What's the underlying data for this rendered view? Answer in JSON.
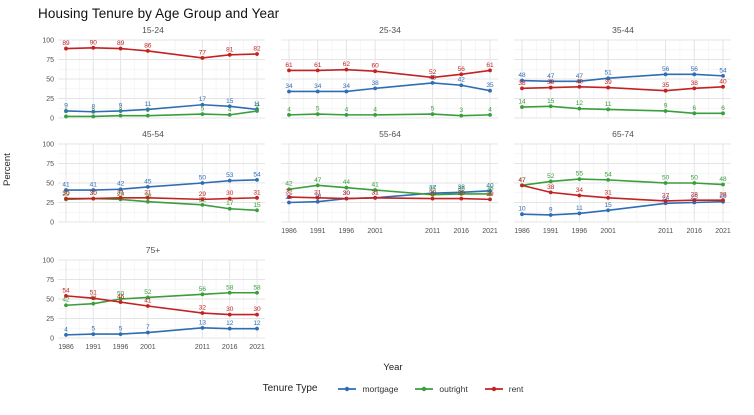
{
  "title": "Housing Tenure by Age Group and Year",
  "axes": {
    "x_label": "Year",
    "y_label": "Percent",
    "x_ticks": [
      1986,
      1991,
      1996,
      2001,
      2011,
      2016,
      2021
    ],
    "y_ticks": [
      0,
      25,
      50,
      75,
      100
    ]
  },
  "legend": {
    "title": "Tenure Type",
    "items": [
      {
        "label": "mortgage",
        "color": "#2e6db4"
      },
      {
        "label": "outright",
        "color": "#3a9e3c"
      },
      {
        "label": "rent",
        "color": "#c32222"
      }
    ]
  },
  "colors": {
    "mortgage": "#2e6db4",
    "outright": "#3a9e3c",
    "rent": "#c32222",
    "grid_major": "#e4e4e4",
    "grid_minor": "#f2f2f2",
    "tick_text": "#4f4f4f",
    "strip_text": "#4f4f4f",
    "title_text": "#111111"
  },
  "chart_data": {
    "type": "line",
    "title": "Housing Tenure by Age Group and Year",
    "xlabel": "Year",
    "ylabel": "Percent",
    "ylim": [
      0,
      100
    ],
    "grid": true,
    "legend_position": "bottom",
    "point_labels": true,
    "x": [
      1986,
      1991,
      1996,
      2001,
      2011,
      2016,
      2021
    ],
    "facets": [
      {
        "label": "15-24",
        "series": [
          {
            "name": "mortgage",
            "values": [
              9,
              8,
              9,
              11,
              17,
              15,
              11
            ]
          },
          {
            "name": "outright",
            "values": [
              2,
              2,
              3,
              3,
              5,
              4,
              9
            ]
          },
          {
            "name": "rent",
            "values": [
              89,
              90,
              89,
              86,
              77,
              81,
              82
            ]
          }
        ]
      },
      {
        "label": "25-34",
        "series": [
          {
            "name": "mortgage",
            "values": [
              34,
              34,
              34,
              38,
              45,
              42,
              35
            ]
          },
          {
            "name": "outright",
            "values": [
              4,
              5,
              4,
              4,
              5,
              3,
              4
            ]
          },
          {
            "name": "rent",
            "values": [
              61,
              61,
              62,
              60,
              52,
              56,
              61
            ]
          }
        ]
      },
      {
        "label": "35-44",
        "series": [
          {
            "name": "mortgage",
            "values": [
              48,
              47,
              47,
              51,
              56,
              56,
              54
            ]
          },
          {
            "name": "outright",
            "values": [
              14,
              15,
              12,
              11,
              9,
              6,
              6
            ]
          },
          {
            "name": "rent",
            "values": [
              38,
              39,
              40,
              39,
              35,
              38,
              40
            ]
          }
        ]
      },
      {
        "label": "45-54",
        "series": [
          {
            "name": "mortgage",
            "values": [
              41,
              41,
              42,
              45,
              50,
              53,
              54
            ]
          },
          {
            "name": "outright",
            "values": [
              29,
              30,
              29,
              26,
              22,
              17,
              15
            ]
          },
          {
            "name": "rent",
            "values": [
              30,
              30,
              31,
              31,
              29,
              30,
              31
            ]
          }
        ]
      },
      {
        "label": "55-64",
        "series": [
          {
            "name": "mortgage",
            "values": [
              25,
              26,
              30,
              31,
              37,
              38,
              40
            ]
          },
          {
            "name": "outright",
            "values": [
              42,
              47,
              44,
              41,
              35,
              36,
              36
            ]
          },
          {
            "name": "rent",
            "values": [
              32,
              31,
              30,
              31,
              30,
              30,
              29
            ]
          }
        ]
      },
      {
        "label": "65-74",
        "series": [
          {
            "name": "mortgage",
            "values": [
              10,
              9,
              11,
              15,
              24,
              25,
              26
            ]
          },
          {
            "name": "outright",
            "values": [
              47,
              52,
              55,
              54,
              50,
              50,
              48
            ]
          },
          {
            "name": "rent",
            "values": [
              47,
              38,
              34,
              31,
              27,
              28,
              28
            ]
          }
        ]
      },
      {
        "label": "75+",
        "series": [
          {
            "name": "mortgage",
            "values": [
              4,
              5,
              5,
              7,
              13,
              12,
              12
            ]
          },
          {
            "name": "outright",
            "values": [
              42,
              44,
              50,
              52,
              56,
              58,
              58
            ]
          },
          {
            "name": "rent",
            "values": [
              54,
              51,
              46,
              41,
              32,
              30,
              30
            ]
          }
        ]
      }
    ]
  }
}
